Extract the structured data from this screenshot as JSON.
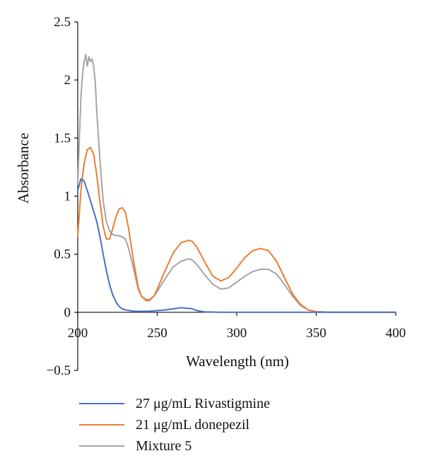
{
  "chart_data": {
    "type": "line",
    "title": "",
    "xlabel": "Wavelength (nm)",
    "ylabel": "Absorbance",
    "xlim": [
      200,
      400
    ],
    "ylim": [
      -0.5,
      2.5
    ],
    "xticks": [
      "200",
      "250",
      "300",
      "350",
      "400"
    ],
    "yticks": [
      "2.5",
      "2",
      "1.5",
      "1",
      "0.5",
      "0",
      "−0.5"
    ],
    "xtick_values": [
      200,
      250,
      300,
      350,
      400
    ],
    "ytick_values": [
      2.5,
      2,
      1.5,
      1,
      0.5,
      0,
      -0.5
    ],
    "grid": false,
    "legend_position": "bottom",
    "series": [
      {
        "name": "27 μg/mL Rivastigmine",
        "color": "#4472C4",
        "x": [
          200,
          202,
          204,
          206,
          208,
          210,
          212,
          214,
          216,
          218,
          220,
          222,
          224,
          226,
          228,
          230,
          235,
          240,
          245,
          250,
          255,
          260,
          265,
          268,
          270,
          272,
          275,
          280,
          290,
          300,
          320,
          350,
          400
        ],
        "y": [
          1.05,
          1.15,
          1.13,
          1.05,
          0.96,
          0.87,
          0.78,
          0.65,
          0.5,
          0.36,
          0.24,
          0.15,
          0.09,
          0.05,
          0.03,
          0.02,
          0.01,
          0.008,
          0.01,
          0.015,
          0.02,
          0.03,
          0.04,
          0.035,
          0.035,
          0.03,
          0.015,
          0.003,
          0.0,
          0.0,
          0.0,
          0.0,
          0.0
        ]
      },
      {
        "name": "21 μg/mL donepezil",
        "color": "#ED7D31",
        "x": [
          200,
          202,
          204,
          206,
          208,
          210,
          212,
          214,
          216,
          218,
          220,
          222,
          224,
          226,
          228,
          230,
          232,
          235,
          238,
          240,
          243,
          245,
          248,
          250,
          255,
          260,
          265,
          270,
          272,
          275,
          280,
          285,
          290,
          295,
          300,
          305,
          310,
          315,
          320,
          325,
          330,
          335,
          340,
          345,
          350,
          360,
          380,
          400
        ],
        "y": [
          0.65,
          1.05,
          1.28,
          1.4,
          1.42,
          1.36,
          1.18,
          0.95,
          0.74,
          0.63,
          0.63,
          0.72,
          0.82,
          0.89,
          0.9,
          0.86,
          0.72,
          0.45,
          0.22,
          0.14,
          0.1,
          0.1,
          0.14,
          0.2,
          0.36,
          0.51,
          0.6,
          0.62,
          0.61,
          0.56,
          0.43,
          0.31,
          0.27,
          0.3,
          0.38,
          0.47,
          0.53,
          0.55,
          0.53,
          0.44,
          0.3,
          0.16,
          0.07,
          0.02,
          0.005,
          0.0,
          0.0,
          0.0
        ]
      },
      {
        "name": "Mixture 5",
        "color": "#A5A5A5",
        "x": [
          200,
          201,
          202,
          203,
          204,
          205,
          206,
          207,
          208,
          209,
          210,
          211,
          212,
          214,
          216,
          218,
          220,
          222,
          224,
          226,
          228,
          230,
          232,
          235,
          238,
          240,
          243,
          245,
          248,
          250,
          255,
          260,
          265,
          270,
          272,
          275,
          280,
          285,
          290,
          295,
          300,
          305,
          310,
          315,
          320,
          325,
          330,
          335,
          340,
          345,
          350,
          360,
          380,
          400
        ],
        "y": [
          1.1,
          1.5,
          1.85,
          2.05,
          2.15,
          2.22,
          2.12,
          2.2,
          2.16,
          2.18,
          2.12,
          1.98,
          1.72,
          1.3,
          0.96,
          0.78,
          0.7,
          0.67,
          0.66,
          0.66,
          0.65,
          0.63,
          0.55,
          0.38,
          0.2,
          0.14,
          0.11,
          0.11,
          0.14,
          0.18,
          0.29,
          0.39,
          0.44,
          0.46,
          0.45,
          0.41,
          0.32,
          0.24,
          0.2,
          0.21,
          0.26,
          0.31,
          0.35,
          0.37,
          0.37,
          0.33,
          0.24,
          0.14,
          0.06,
          0.02,
          0.005,
          0.0,
          0.0,
          0.0
        ]
      }
    ]
  }
}
